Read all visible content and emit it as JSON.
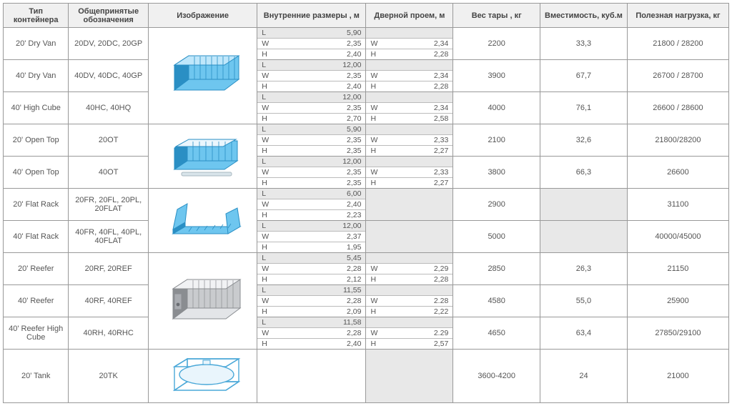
{
  "headers": {
    "type": "Тип контейнера",
    "designations": "Общепринятые обозначения",
    "image": "Изображение",
    "inner": "Внутренние размеры , м",
    "door": "Дверной проем, м",
    "tare": "Вес тары , кг",
    "capacity": "Вместимость, куб.м",
    "payload": "Полезная нагрузка, кг"
  },
  "dim_labels": {
    "L": "L",
    "W": "W",
    "H": "H"
  },
  "colors": {
    "border": "#999999",
    "header_bg": "#f0f0f0",
    "shade_bg": "#e8e8e8",
    "text": "#555555",
    "container_blue": "#6ec6ef",
    "container_blue_dark": "#2a8fc4",
    "reefer_gray": "#c9cbce",
    "reefer_gray_dark": "#8a8d91",
    "tank_line": "#4aa8d8"
  },
  "groups": [
    {
      "image": "dryvan",
      "rows": [
        {
          "type": "20' Dry Van",
          "desig": "20DV, 20DC, 20GP",
          "inner": {
            "L": "5,90",
            "W": "2,35",
            "H": "2,40"
          },
          "door": {
            "W": "2,34",
            "H": "2,28"
          },
          "tare": "2200",
          "cap": "33,3",
          "pay": "21800 / 28200"
        },
        {
          "type": "40' Dry Van",
          "desig": "40DV, 40DC, 40GP",
          "inner": {
            "L": "12,00",
            "W": "2,35",
            "H": "2,40"
          },
          "door": {
            "W": "2,34",
            "H": "2,28"
          },
          "tare": "3900",
          "cap": "67,7",
          "pay": "26700 / 28700"
        },
        {
          "type": "40' High Cube",
          "desig": "40HC, 40HQ",
          "inner": {
            "L": "12,00",
            "W": "2,35",
            "H": "2,70"
          },
          "door": {
            "W": "2,34",
            "H": "2,58"
          },
          "tare": "4000",
          "cap": "76,1",
          "pay": "26600 / 28600"
        }
      ]
    },
    {
      "image": "opentop",
      "rows": [
        {
          "type": "20' Open Top",
          "desig": "20OT",
          "inner": {
            "L": "5,90",
            "W": "2,35",
            "H": "2,35"
          },
          "door": {
            "W": "2,33",
            "H": "2,27"
          },
          "tare": "2100",
          "cap": "32,6",
          "pay": "21800/28200"
        },
        {
          "type": "40' Open Top",
          "desig": "40OT",
          "inner": {
            "L": "12,00",
            "W": "2,35",
            "H": "2,35"
          },
          "door": {
            "W": "2,33",
            "H": "2,27"
          },
          "tare": "3800",
          "cap": "66,3",
          "pay": "26600"
        }
      ]
    },
    {
      "image": "flatrack",
      "rows": [
        {
          "type": "20' Flat Rack",
          "desig": "20FR, 20FL, 20PL, 20FLAT",
          "inner": {
            "L": "6,00",
            "W": "2,40",
            "H": "2,23"
          },
          "door": null,
          "tare": "2900",
          "cap": "",
          "pay": "31100"
        },
        {
          "type": "40' Flat Rack",
          "desig": "40FR, 40FL, 40PL, 40FLAT",
          "inner": {
            "L": "12,00",
            "W": "2,37",
            "H": "1,95"
          },
          "door": null,
          "tare": "5000",
          "cap": "",
          "pay": "40000/45000"
        }
      ]
    },
    {
      "image": "reefer",
      "rows": [
        {
          "type": "20' Reefer",
          "desig": "20RF, 20REF",
          "inner": {
            "L": "5,45",
            "W": "2,28",
            "H": "2,12"
          },
          "door": {
            "W": "2,29",
            "H": "2,28"
          },
          "tare": "2850",
          "cap": "26,3",
          "pay": "21150"
        },
        {
          "type": "40' Reefer",
          "desig": "40RF, 40REF",
          "inner": {
            "L": "11,55",
            "W": "2,28",
            "H": "2,09"
          },
          "door": {
            "W": "2.28",
            "H": "2,22"
          },
          "tare": "4580",
          "cap": "55,0",
          "pay": "25900"
        },
        {
          "type": "40' Reefer High Cube",
          "desig": "40RH, 40RHC",
          "inner": {
            "L": "11,58",
            "W": "2,28",
            "H": "2,40"
          },
          "door": {
            "W": "2.29",
            "H": "2,57"
          },
          "tare": "4650",
          "cap": "63,4",
          "pay": "27850/29100"
        }
      ]
    },
    {
      "image": "tank",
      "rows": [
        {
          "type": "20' Tank",
          "desig": "20TK",
          "inner": null,
          "door": null,
          "tare": "3600-4200",
          "cap": "24",
          "pay": "21000"
        }
      ]
    }
  ]
}
